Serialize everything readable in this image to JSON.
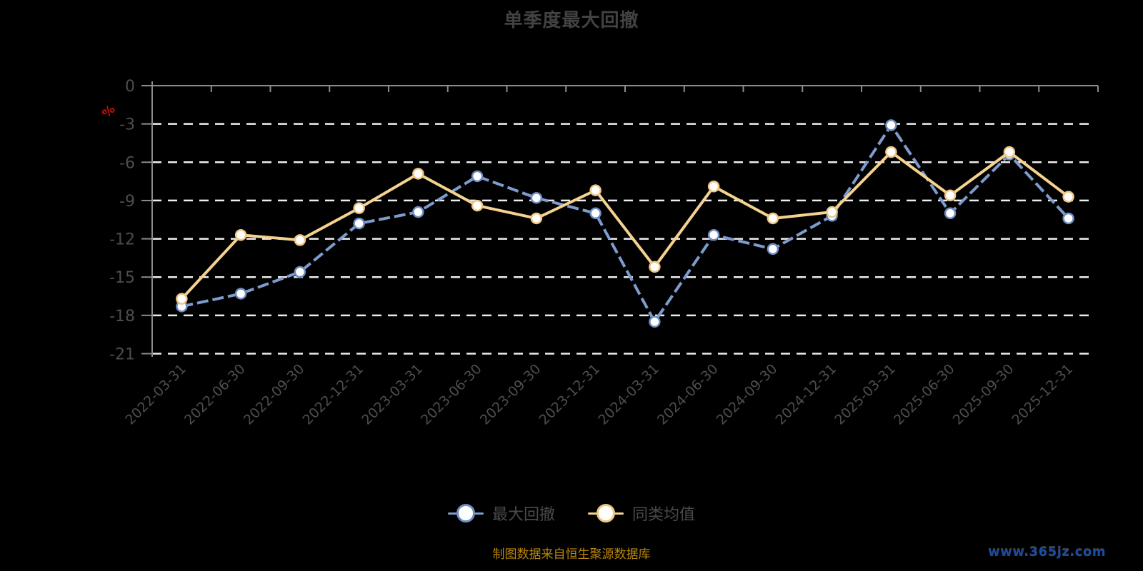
{
  "title": "单季度最大回撤",
  "y_axis": {
    "unit_label": "%",
    "unit_label_color": "#cc1111",
    "tick_label_color": "#4d4d4d"
  },
  "x_axis": {
    "tick_label_color": "#4d4d4d"
  },
  "legend": {
    "items": [
      {
        "label": "最大回撤"
      },
      {
        "label": "同类均值"
      }
    ]
  },
  "footer": {
    "source_note": "制图数据来自恒生聚源数据库",
    "source_note_color": "#b8860b",
    "watermark": "www.365jz.com",
    "watermark_color": "#1b4a9e"
  },
  "chart_data": {
    "type": "line",
    "title": "单季度最大回撤",
    "categories": [
      "2022-03-31",
      "2022-06-30",
      "2022-09-30",
      "2022-12-31",
      "2023-03-31",
      "2023-06-30",
      "2023-09-30",
      "2023-12-31",
      "2024-03-31",
      "2024-06-30",
      "2024-09-30",
      "2024-12-31",
      "2025-03-31",
      "2025-06-30",
      "2025-09-30",
      "2025-12-31"
    ],
    "series": [
      {
        "name": "最大回撤",
        "color": "#7d9ccd",
        "marker_ring": "#6d8dc3",
        "marker_fill": "#ffffff",
        "line_style": "dashed",
        "values": [
          -17.3,
          -16.3,
          -14.6,
          -10.8,
          -9.9,
          -7.1,
          -8.8,
          -10.0,
          -18.5,
          -11.7,
          -12.8,
          -10.2,
          -3.1,
          -10.0,
          -5.4,
          -10.4
        ]
      },
      {
        "name": "同类均值",
        "color": "#f5d28f",
        "marker_ring": "#efc684",
        "marker_fill": "#ffffff",
        "line_style": "solid",
        "values": [
          -16.7,
          -11.7,
          -12.1,
          -9.6,
          -6.9,
          -9.4,
          -10.4,
          -8.2,
          -14.2,
          -7.9,
          -10.4,
          -9.9,
          -5.2,
          -8.6,
          -5.2,
          -8.7
        ]
      }
    ],
    "ylabel": "%",
    "ylim": [
      -21,
      0
    ],
    "y_ticks": [
      0,
      -3,
      -6,
      -9,
      -12,
      -15,
      -18,
      -21
    ],
    "grid": "horizontal white dashed lines, zero line solid gray at top",
    "grid_color": "#ededed",
    "axis_color": "#8c8c8c",
    "background_color": "#000000",
    "legend_position": "bottom"
  }
}
